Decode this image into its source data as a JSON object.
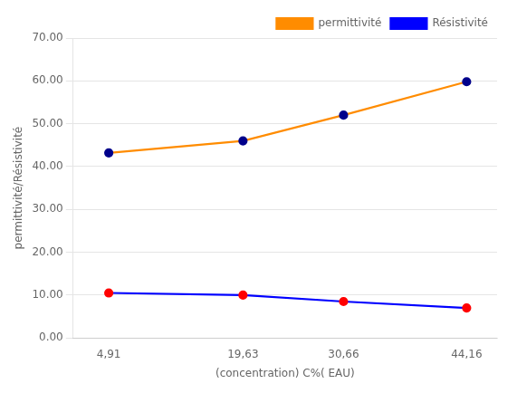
{
  "chart_data": {
    "type": "line",
    "x": [
      4.91,
      19.63,
      30.66,
      44.16
    ],
    "series": [
      {
        "name": "permittivité",
        "color": "#FF8C00",
        "colors": [
          "#00008B",
          "#00008B",
          "#00008B",
          "#00008B"
        ],
        "marker": "circle",
        "values": [
          43.2,
          46.0,
          52.0,
          59.8
        ]
      },
      {
        "name": "Résistivité",
        "color": "#0000FF",
        "colors": [
          "#FF0000",
          "#FF0000",
          "#FF0000",
          "#FF0000"
        ],
        "marker": "circle",
        "values": [
          10.5,
          10.0,
          8.5,
          7.0
        ]
      }
    ],
    "x_label": "(concentration) C%( EAU)",
    "y_label": "permittivité/Résistivité",
    "xlim": [
      1.0,
      47.5
    ],
    "xticks": [
      {
        "value": 4.91,
        "label": "4,91"
      },
      {
        "value": 19.63,
        "label": "19,63"
      },
      {
        "value": 30.66,
        "label": "30,66"
      },
      {
        "value": 44.16,
        "label": "44,16"
      }
    ],
    "ylim": [
      0,
      70
    ],
    "yticks": [
      {
        "value": 0,
        "label": "0.00"
      },
      {
        "value": 10,
        "label": "10.00"
      },
      {
        "value": 20,
        "label": "20.00"
      },
      {
        "value": 30,
        "label": "30.00"
      },
      {
        "value": 40,
        "label": "40.00"
      },
      {
        "value": 50,
        "label": "50.00"
      },
      {
        "value": 60,
        "label": "60.00"
      },
      {
        "value": 70,
        "label": "70.00"
      }
    ],
    "grid": "y",
    "legend": "upper right"
  }
}
